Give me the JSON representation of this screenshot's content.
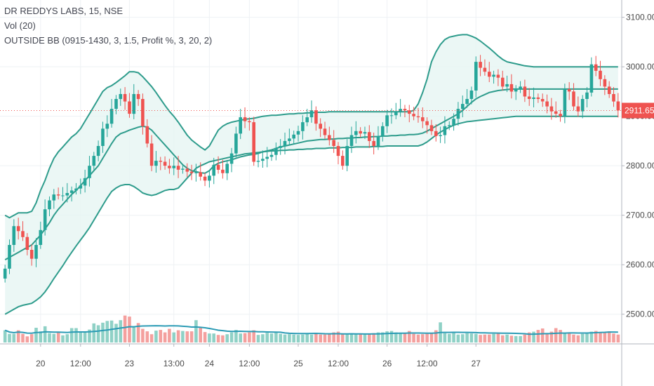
{
  "legend": {
    "symbol": "DR REDDYS LABS, 15, NSE",
    "volume": "Vol (20)",
    "indicator": "OUTSIDE BB (0915-1430, 3, 1.5, Profit %, 3, 20, 2)"
  },
  "colors": {
    "up": "#26a69a",
    "down": "#ef5350",
    "band": "#2e9c8c",
    "band_fill": "#e6f5f3",
    "volume_up": "#8fd1c6",
    "volume_down": "#f4a09e",
    "volume_ma": "#2b9bb5",
    "grid": "#eef1f4",
    "last_price_bg": "#ef5350"
  },
  "chart_data": {
    "type": "candlestick",
    "symbol": "DR REDDYS LABS",
    "interval": "15",
    "exchange": "NSE",
    "ylim": [
      2440,
      3135
    ],
    "y_ticks": [
      "3100.00",
      "3000.00",
      "2900.00",
      "2800.00",
      "2700.00",
      "2600.00",
      "2500.00"
    ],
    "y_tick_values": [
      3100,
      3000,
      2900,
      2800,
      2700,
      2600,
      2500
    ],
    "x_ticks": [
      {
        "label": "20",
        "bar": 8
      },
      {
        "label": "12:00",
        "bar": 17
      },
      {
        "label": "23",
        "bar": 28
      },
      {
        "label": "13:00",
        "bar": 38
      },
      {
        "label": "24",
        "bar": 46
      },
      {
        "label": "12:00",
        "bar": 55
      },
      {
        "label": "25",
        "bar": 66
      },
      {
        "label": "12:00",
        "bar": 75
      },
      {
        "label": "26",
        "bar": 86
      },
      {
        "label": "12:00",
        "bar": 95
      },
      {
        "label": "27",
        "bar": 106
      }
    ],
    "last_price": "2911.65",
    "last_price_value": 2911.65,
    "close": [
      2592,
      2640,
      2678,
      2668,
      2656,
      2630,
      2612,
      2640,
      2670,
      2712,
      2730,
      2742,
      2740,
      2740,
      2745,
      2750,
      2754,
      2760,
      2775,
      2800,
      2820,
      2840,
      2875,
      2885,
      2915,
      2935,
      2945,
      2930,
      2905,
      2945,
      2935,
      2880,
      2845,
      2800,
      2810,
      2808,
      2800,
      2795,
      2800,
      2792,
      2794,
      2788,
      2785,
      2787,
      2778,
      2770,
      2780,
      2802,
      2792,
      2785,
      2804,
      2825,
      2865,
      2898,
      2890,
      2888,
      2808,
      2810,
      2814,
      2818,
      2822,
      2836,
      2840,
      2850,
      2855,
      2863,
      2870,
      2888,
      2898,
      2912,
      2885,
      2875,
      2862,
      2852,
      2840,
      2820,
      2800,
      2840,
      2862,
      2870,
      2865,
      2868,
      2850,
      2840,
      2860,
      2880,
      2902,
      2902,
      2910,
      2915,
      2912,
      2905,
      2900,
      2898,
      2890,
      2882,
      2870,
      2860,
      2862,
      2880,
      2882,
      2895,
      2915,
      2925,
      2935,
      2952,
      3010,
      2998,
      2990,
      2980,
      2984,
      2978,
      2960,
      2965,
      2950,
      2955,
      2960,
      2940,
      2935,
      2938,
      2935,
      2930,
      2920,
      2910,
      2905,
      2900,
      2955,
      2950,
      2920,
      2910,
      2935,
      2948,
      3005,
      2992,
      2975,
      2960,
      2945,
      2930,
      2911.65
    ],
    "bb_upper": [
      2700,
      2695,
      2700,
      2705,
      2705,
      2705,
      2708,
      2725,
      2750,
      2770,
      2795,
      2815,
      2828,
      2838,
      2848,
      2858,
      2865,
      2875,
      2890,
      2905,
      2920,
      2935,
      2950,
      2958,
      2962,
      2968,
      2975,
      2982,
      2990,
      2990,
      2988,
      2980,
      2970,
      2960,
      2948,
      2935,
      2922,
      2910,
      2900,
      2888,
      2875,
      2862,
      2852,
      2845,
      2838,
      2832,
      2840,
      2856,
      2872,
      2880,
      2885,
      2888,
      2890,
      2892,
      2894,
      2895,
      2896,
      2898,
      2900,
      2901,
      2902,
      2902,
      2903,
      2904,
      2905,
      2905,
      2906,
      2906,
      2907,
      2907,
      2908,
      2908,
      2908,
      2909,
      2909,
      2909,
      2909,
      2909,
      2909,
      2909,
      2909,
      2909,
      2909,
      2909,
      2909,
      2909,
      2909,
      2909,
      2909,
      2909,
      2909,
      2909,
      2912,
      2925,
      2948,
      2975,
      3010,
      3030,
      3045,
      3055,
      3060,
      3062,
      3064,
      3065,
      3065,
      3062,
      3058,
      3052,
      3045,
      3038,
      3030,
      3022,
      3015,
      3010,
      3008,
      3006,
      3004,
      3002,
      3001,
      3000,
      3000,
      3000,
      3000,
      3000,
      3000,
      3000,
      3000,
      3000,
      3000,
      3000,
      3000,
      3000,
      3000,
      3000,
      3000,
      3000,
      3000,
      3000,
      3000
    ],
    "bb_middle": [
      2610,
      2615,
      2620,
      2625,
      2630,
      2635,
      2640,
      2650,
      2660,
      2672,
      2685,
      2700,
      2712,
      2722,
      2732,
      2742,
      2750,
      2760,
      2770,
      2780,
      2790,
      2800,
      2815,
      2830,
      2845,
      2858,
      2865,
      2868,
      2872,
      2875,
      2878,
      2880,
      2878,
      2872,
      2862,
      2852,
      2842,
      2832,
      2822,
      2812,
      2802,
      2795,
      2790,
      2788,
      2786,
      2785,
      2790,
      2800,
      2805,
      2808,
      2810,
      2812,
      2815,
      2818,
      2820,
      2822,
      2823,
      2825,
      2828,
      2830,
      2832,
      2835,
      2838,
      2840,
      2842,
      2844,
      2846,
      2848,
      2850,
      2851,
      2852,
      2853,
      2853,
      2854,
      2854,
      2855,
      2855,
      2856,
      2856,
      2857,
      2857,
      2858,
      2858,
      2859,
      2859,
      2860,
      2860,
      2861,
      2861,
      2862,
      2862,
      2863,
      2863,
      2864,
      2866,
      2870,
      2875,
      2880,
      2885,
      2890,
      2895,
      2900,
      2905,
      2912,
      2920,
      2928,
      2935,
      2940,
      2944,
      2948,
      2950,
      2952,
      2953,
      2954,
      2955,
      2955,
      2955,
      2955,
      2955,
      2955,
      2955,
      2955,
      2955,
      2955,
      2955,
      2955,
      2955,
      2955,
      2955,
      2955,
      2955,
      2955,
      2955,
      2955,
      2955,
      2955,
      2955,
      2955,
      2955
    ],
    "bb_lower": [
      2500,
      2505,
      2510,
      2515,
      2518,
      2520,
      2522,
      2528,
      2535,
      2545,
      2558,
      2572,
      2585,
      2598,
      2612,
      2625,
      2638,
      2650,
      2662,
      2675,
      2690,
      2705,
      2720,
      2735,
      2748,
      2755,
      2760,
      2762,
      2762,
      2758,
      2752,
      2745,
      2742,
      2740,
      2742,
      2746,
      2750,
      2752,
      2752,
      2755,
      2765,
      2775,
      2785,
      2795,
      2800,
      2804,
      2808,
      2810,
      2812,
      2814,
      2816,
      2818,
      2820,
      2822,
      2824,
      2825,
      2826,
      2827,
      2828,
      2829,
      2830,
      2830,
      2831,
      2831,
      2832,
      2832,
      2833,
      2833,
      2834,
      2834,
      2835,
      2835,
      2835,
      2836,
      2836,
      2836,
      2837,
      2837,
      2837,
      2838,
      2838,
      2838,
      2838,
      2839,
      2839,
      2839,
      2840,
      2840,
      2840,
      2840,
      2840,
      2840,
      2840,
      2840,
      2843,
      2848,
      2855,
      2862,
      2868,
      2873,
      2878,
      2882,
      2885,
      2887,
      2889,
      2890,
      2891,
      2892,
      2893,
      2894,
      2895,
      2896,
      2897,
      2898,
      2899,
      2900,
      2900,
      2900,
      2900,
      2900,
      2900,
      2900,
      2900,
      2900,
      2900,
      2900,
      2900,
      2900,
      2900,
      2900,
      2900,
      2900,
      2900,
      2900,
      2900,
      2900,
      2900,
      2900,
      2900
    ],
    "volume": [
      34,
      24,
      24,
      34,
      24,
      17,
      23,
      41,
      31,
      45,
      26,
      24,
      28,
      20,
      23,
      40,
      40,
      29,
      29,
      36,
      53,
      48,
      55,
      60,
      61,
      52,
      62,
      75,
      72,
      42,
      54,
      38,
      31,
      23,
      33,
      35,
      28,
      38,
      28,
      34,
      32,
      31,
      31,
      62,
      41,
      29,
      25,
      25,
      21,
      20,
      23,
      28,
      35,
      25,
      26,
      28,
      34,
      21,
      23,
      27,
      25,
      28,
      24,
      22,
      23,
      22,
      21,
      22,
      24,
      22,
      26,
      22,
      22,
      23,
      28,
      30,
      23,
      24,
      25,
      23,
      24,
      22,
      24,
      26,
      28,
      28,
      31,
      32,
      28,
      27,
      25,
      32,
      24,
      22,
      23,
      24,
      26,
      34,
      56,
      26,
      24,
      27,
      22,
      23,
      26,
      25,
      24,
      21,
      22,
      22,
      24,
      26,
      20,
      22,
      19,
      18,
      18,
      22,
      28,
      30,
      35,
      39,
      26,
      30,
      40,
      35,
      25,
      28,
      22,
      20,
      24,
      26,
      30,
      32,
      29,
      28,
      31,
      25,
      22
    ],
    "volume_ma": [
      25,
      32,
      40
    ],
    "volume_scale_max": 160
  }
}
